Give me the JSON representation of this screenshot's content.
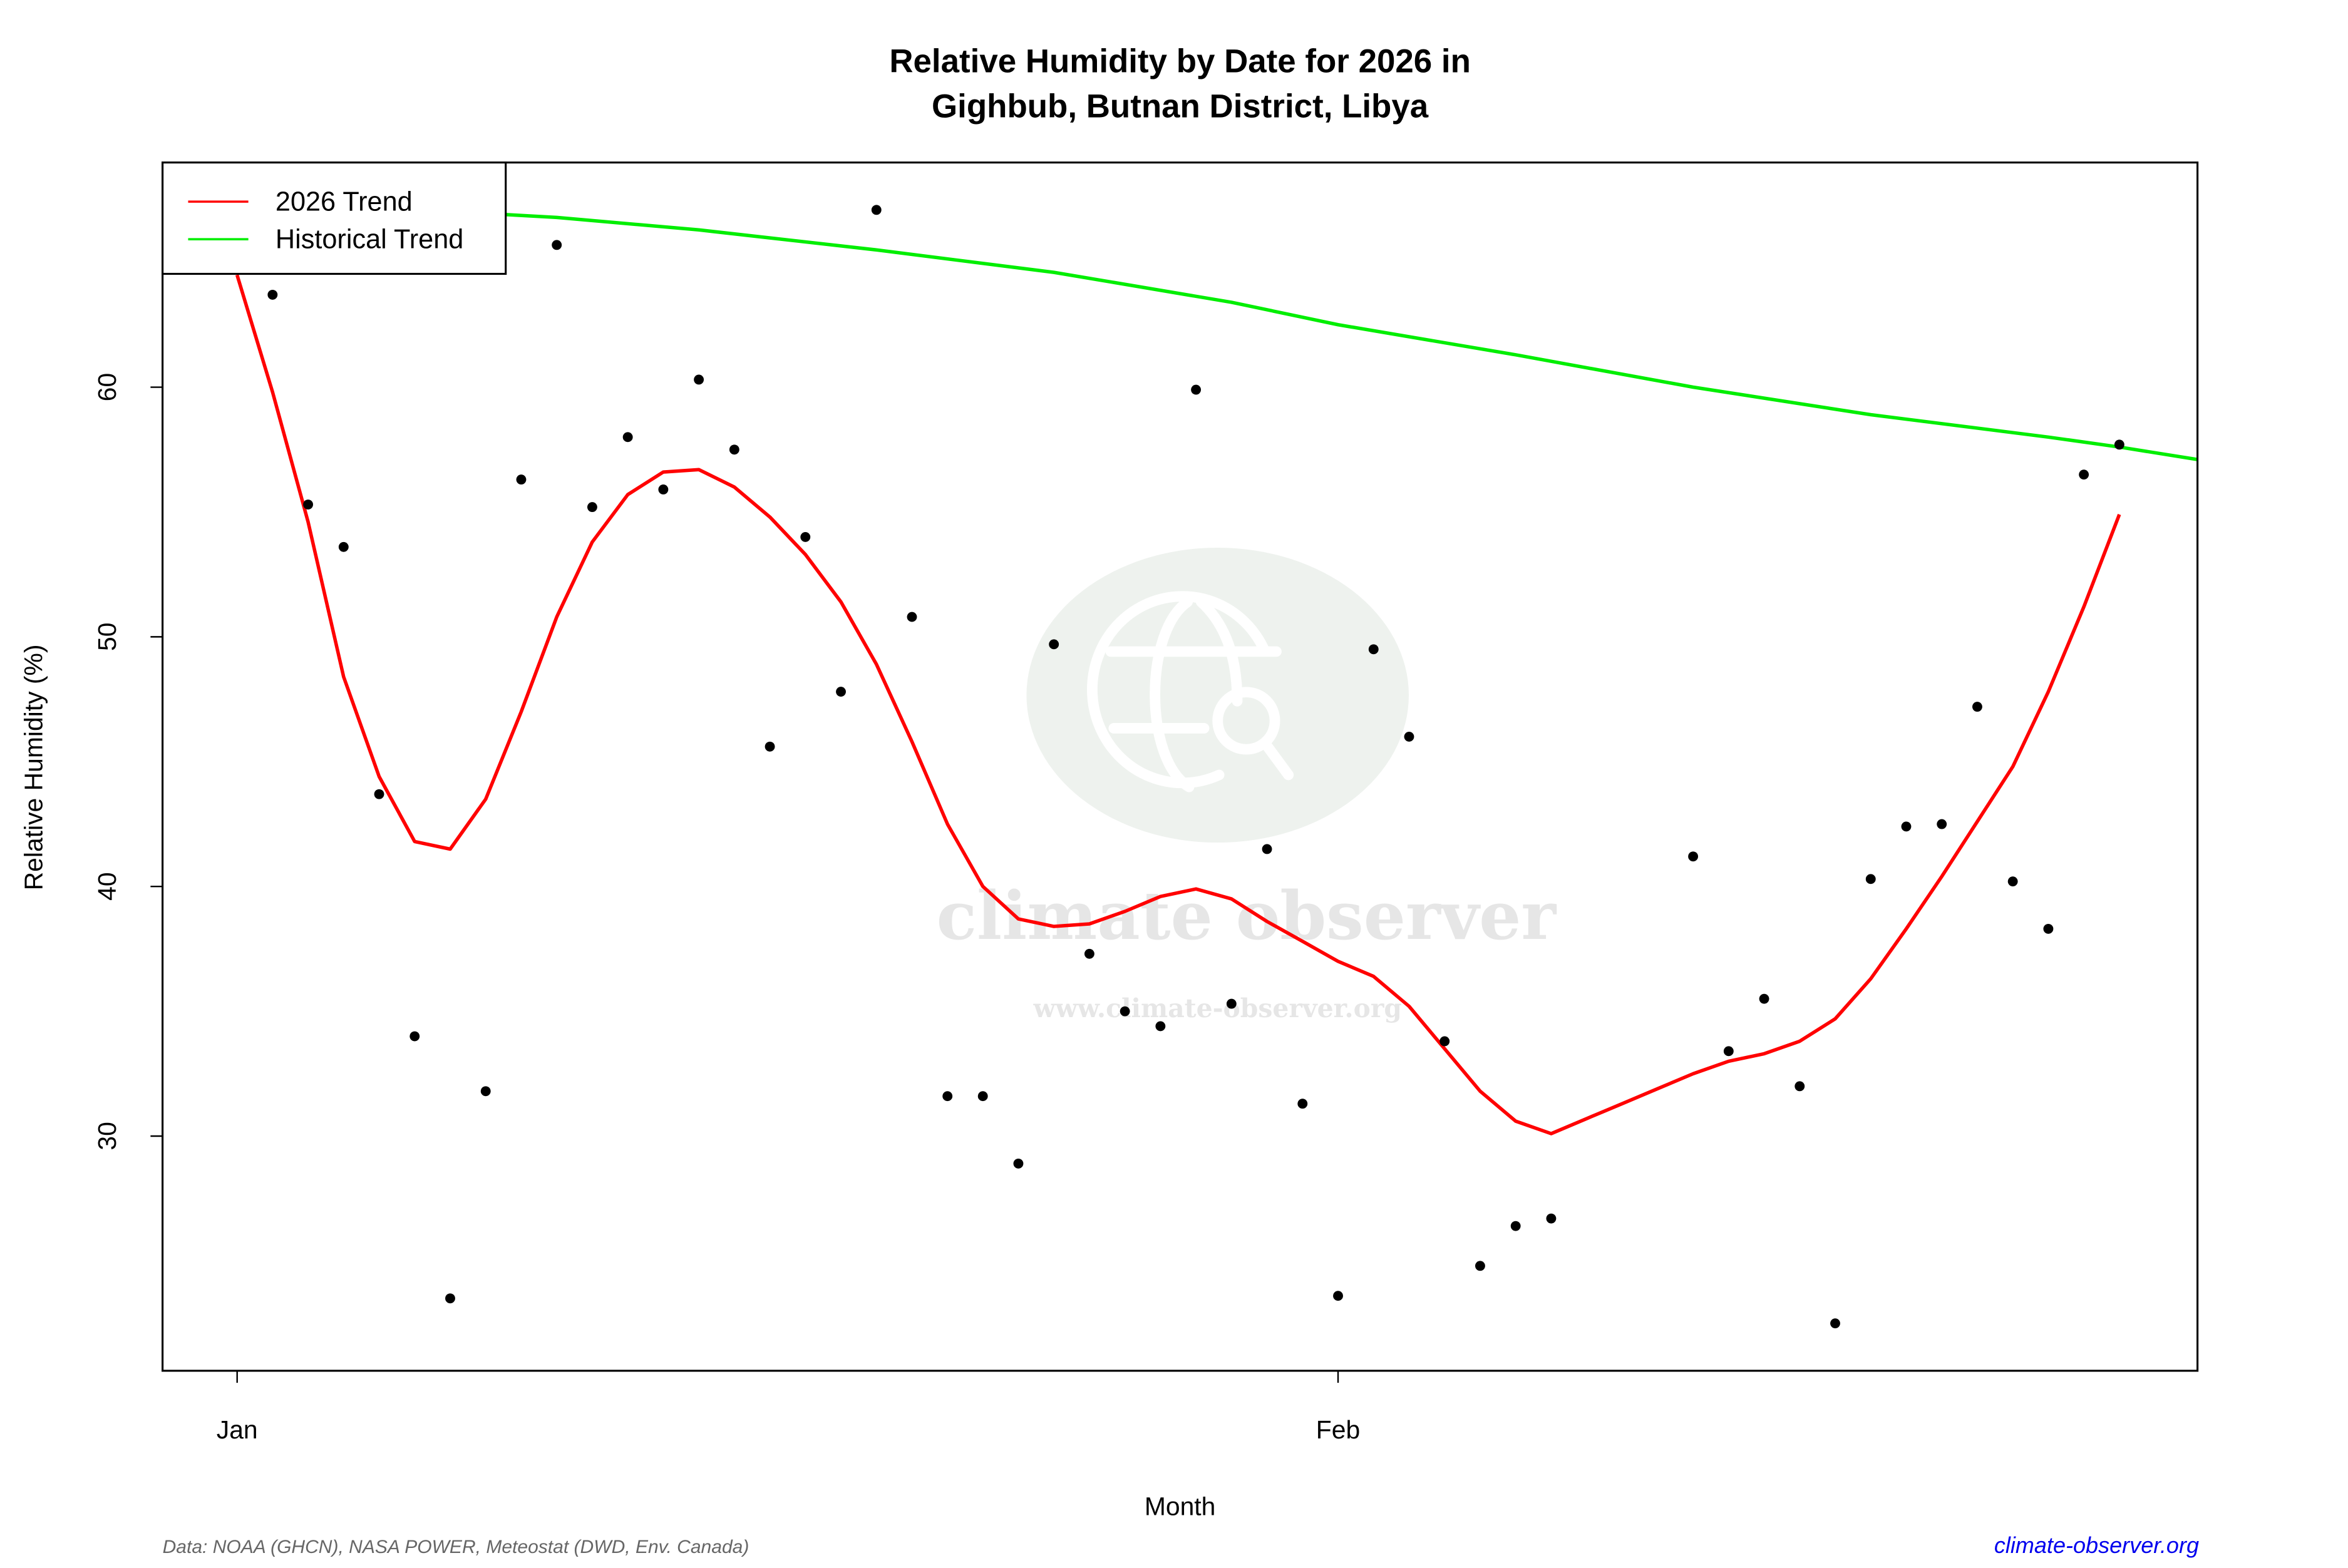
{
  "chart_data": {
    "type": "scatter",
    "title": "Relative Humidity by Date for 2026 in",
    "subtitle": "Gighbub, Butnan District, Libya",
    "xlabel": "Month",
    "ylabel": "Relative Humidity (%)",
    "x_ticks": [
      {
        "label": "Jan",
        "day": 1
      },
      {
        "label": "Feb",
        "day": 32
      }
    ],
    "y_ticks": [
      30,
      40,
      50,
      60
    ],
    "xlim_days": [
      -1.1,
      56.2
    ],
    "ylim": [
      20.6,
      69.0
    ],
    "grid": false,
    "legend_position": "top-left",
    "legend": [
      {
        "label": "2026 Trend",
        "color": "#ff0000"
      },
      {
        "label": "Historical Trend",
        "color": "#00ee00"
      }
    ],
    "points": {
      "name": "Daily observations",
      "color": "#000000",
      "day": [
        2,
        3,
        4,
        5,
        6,
        7,
        8,
        9,
        10,
        11,
        12,
        13,
        14,
        15,
        16,
        17,
        18,
        19,
        20,
        21,
        22,
        23,
        24,
        25,
        26,
        27,
        28,
        29,
        30,
        31,
        32,
        33,
        34,
        35,
        36,
        37,
        38,
        42,
        43,
        44,
        45,
        46,
        47,
        48,
        49,
        50,
        51,
        52,
        53,
        54
      ],
      "value": [
        63.7,
        55.3,
        53.6,
        43.7,
        34.0,
        23.5,
        31.8,
        56.3,
        65.7,
        55.2,
        58.0,
        55.9,
        60.3,
        57.5,
        45.6,
        54.0,
        47.8,
        67.1,
        50.8,
        31.6,
        31.6,
        28.9,
        49.7,
        37.3,
        35.0,
        34.4,
        59.9,
        35.3,
        41.5,
        31.3,
        23.6,
        49.5,
        46.0,
        33.8,
        24.8,
        26.4,
        26.7,
        41.2,
        33.4,
        35.5,
        32.0,
        22.5,
        40.3,
        42.4,
        42.5,
        47.2,
        40.2,
        38.3,
        56.5,
        57.7
      ]
    },
    "series": [
      {
        "name": "2026 Trend",
        "color": "#ff0000",
        "day": [
          1,
          2,
          3,
          4,
          5,
          6,
          7,
          8,
          9,
          10,
          11,
          12,
          13,
          14,
          15,
          16,
          17,
          18,
          19,
          20,
          21,
          22,
          23,
          24,
          25,
          26,
          27,
          28,
          29,
          30,
          31,
          32,
          33,
          34,
          35,
          36,
          37,
          38,
          39,
          40,
          41,
          42,
          43,
          44,
          45,
          46,
          47,
          48,
          49,
          50,
          51,
          52,
          53,
          54
        ],
        "values": [
          64.5,
          59.8,
          54.6,
          48.4,
          44.4,
          41.8,
          41.5,
          43.5,
          47.0,
          50.8,
          53.8,
          55.7,
          56.6,
          56.7,
          56.0,
          54.8,
          53.3,
          51.4,
          48.9,
          45.8,
          42.5,
          40.0,
          38.7,
          38.4,
          38.5,
          39.0,
          39.6,
          39.9,
          39.5,
          38.6,
          37.8,
          37.0,
          36.4,
          35.2,
          33.5,
          31.8,
          30.6,
          30.1,
          30.7,
          31.3,
          31.9,
          32.5,
          33.0,
          33.3,
          33.8,
          34.7,
          36.3,
          38.3,
          40.4,
          42.6,
          44.8,
          47.8,
          51.2,
          54.9
        ]
      },
      {
        "name": "Historical Trend",
        "color": "#00ee00",
        "day": [
          -1.1,
          1,
          5,
          10,
          14,
          19,
          24,
          29,
          32,
          37,
          42,
          47,
          52,
          54,
          56.2
        ],
        "values": [
          67.6,
          67.4,
          67.2,
          66.8,
          66.3,
          65.5,
          64.6,
          63.4,
          62.5,
          61.3,
          60.0,
          58.9,
          58.0,
          57.6,
          57.1
        ]
      }
    ]
  },
  "footer": {
    "source": "Data: NOAA (GHCN), NASA POWER, Meteostat (DWD, Env. Canada)",
    "site": "climate-observer.org"
  },
  "watermark": {
    "brand": "climate observer",
    "url": "www.climate-observer.org",
    "icon": "globe-search-icon"
  }
}
